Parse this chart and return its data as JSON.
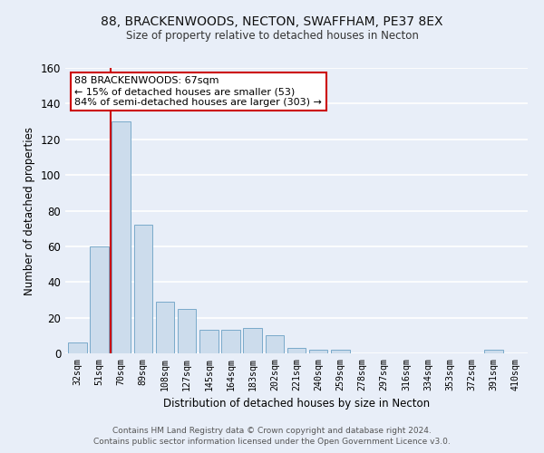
{
  "title": "88, BRACKENWOODS, NECTON, SWAFFHAM, PE37 8EX",
  "subtitle": "Size of property relative to detached houses in Necton",
  "xlabel": "Distribution of detached houses by size in Necton",
  "ylabel": "Number of detached properties",
  "bar_color": "#ccdcec",
  "bar_edge_color": "#7aaaca",
  "background_color": "#e8eef8",
  "grid_color": "#ffffff",
  "categories": [
    "32sqm",
    "51sqm",
    "70sqm",
    "89sqm",
    "108sqm",
    "127sqm",
    "145sqm",
    "164sqm",
    "183sqm",
    "202sqm",
    "221sqm",
    "240sqm",
    "259sqm",
    "278sqm",
    "297sqm",
    "316sqm",
    "334sqm",
    "353sqm",
    "372sqm",
    "391sqm",
    "410sqm"
  ],
  "values": [
    6,
    60,
    130,
    72,
    29,
    25,
    13,
    13,
    14,
    10,
    3,
    2,
    2,
    0,
    0,
    0,
    0,
    0,
    0,
    2,
    0
  ],
  "ylim": [
    0,
    160
  ],
  "yticks": [
    0,
    20,
    40,
    60,
    80,
    100,
    120,
    140,
    160
  ],
  "red_line_x": 1.5,
  "marker_label": "88 BRACKENWOODS: 67sqm",
  "annotation_line1": "← 15% of detached houses are smaller (53)",
  "annotation_line2": "84% of semi-detached houses are larger (303) →",
  "footer_line1": "Contains HM Land Registry data © Crown copyright and database right 2024.",
  "footer_line2": "Contains public sector information licensed under the Open Government Licence v3.0.",
  "red_line_color": "#cc0000",
  "annotation_box_color": "#ffffff",
  "annotation_box_edge": "#cc0000"
}
